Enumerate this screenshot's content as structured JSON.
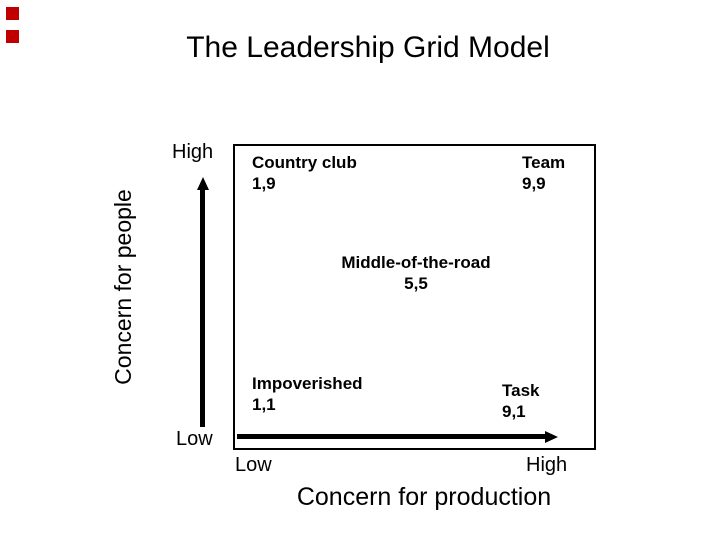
{
  "slide": {
    "title": "The Leadership Grid Model"
  },
  "colors": {
    "accent": "#c00000",
    "ink": "#000000",
    "background": "#ffffff"
  },
  "y_axis": {
    "label": "Concern for people",
    "high": "High",
    "low": "Low"
  },
  "x_axis": {
    "label": "Concern for production",
    "low": "Low",
    "high": "High"
  },
  "grid": {
    "styles": [
      {
        "name": "Country club",
        "coords": "1,9",
        "position": "top-left"
      },
      {
        "name": "Team",
        "coords": "9,9",
        "position": "top-right"
      },
      {
        "name": "Middle-of-the-road",
        "coords": "5,5",
        "position": "center"
      },
      {
        "name": "Impoverished",
        "coords": "1,1",
        "position": "bottom-left"
      },
      {
        "name": "Task",
        "coords": "9,1",
        "position": "bottom-right"
      }
    ]
  }
}
